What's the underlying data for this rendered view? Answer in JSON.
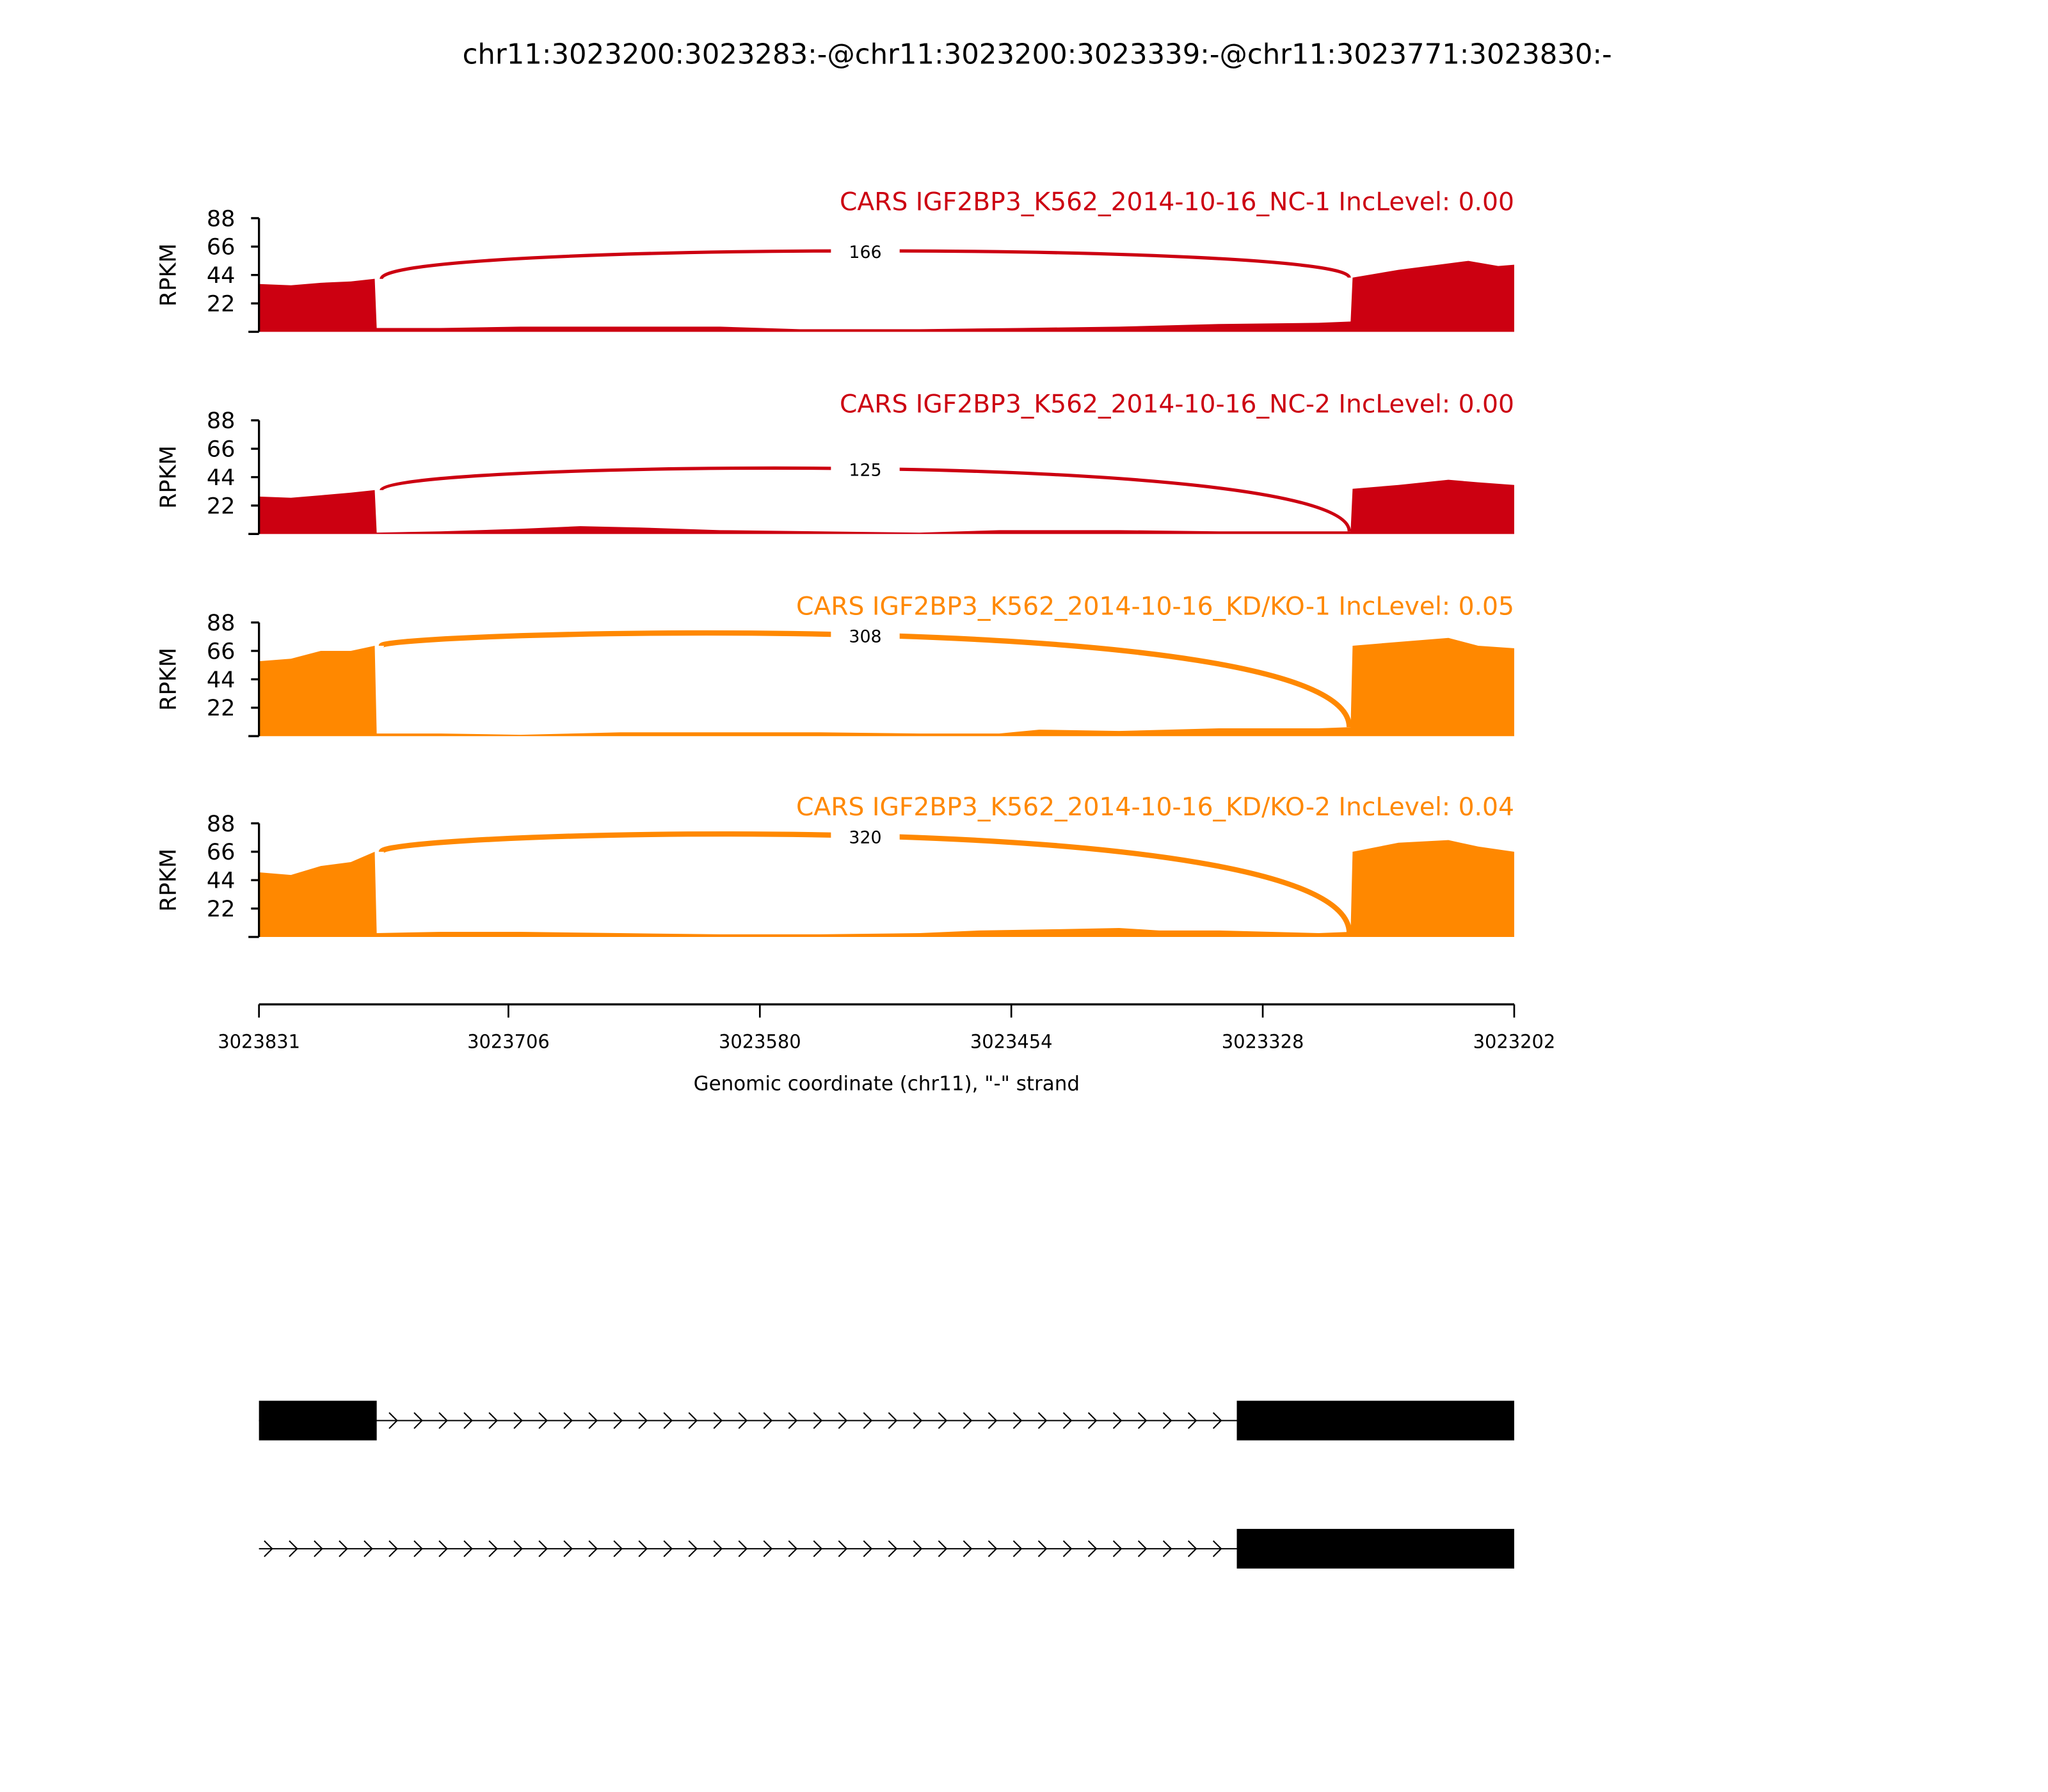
{
  "chart_data": {
    "type": "area",
    "title": "chr11:3023200:3023283:-@chr11:3023200:3023339:-@chr11:3023771:3023830:-",
    "xlabel": "Genomic coordinate (chr11), \"-\" strand",
    "ylabel": "RPKM",
    "xlim": [
      3023831,
      3023202
    ],
    "x_ticks": [
      "3023831",
      "3023706",
      "3023580",
      "3023454",
      "3023328",
      "3023202"
    ],
    "ylim": [
      0,
      88
    ],
    "y_ticks": [
      "88",
      "66",
      "44",
      "22"
    ],
    "junction": {
      "start": 3023771,
      "end": 3023284
    },
    "samples": [
      {
        "label": "CARS IGF2BP3_K562_2014-10-16_NC-1 IncLevel: 0.00",
        "color": "#CC0011",
        "junction_count": "166",
        "coverage": [
          [
            3023831,
            37
          ],
          [
            3023815,
            36
          ],
          [
            3023800,
            38
          ],
          [
            3023785,
            39
          ],
          [
            3023773,
            41
          ],
          [
            3023772,
            3
          ],
          [
            3023740,
            3
          ],
          [
            3023700,
            4
          ],
          [
            3023650,
            4
          ],
          [
            3023600,
            4
          ],
          [
            3023560,
            2
          ],
          [
            3023500,
            2
          ],
          [
            3023450,
            3
          ],
          [
            3023400,
            4
          ],
          [
            3023350,
            6
          ],
          [
            3023300,
            7
          ],
          [
            3023284,
            8
          ],
          [
            3023283,
            42
          ],
          [
            3023260,
            48
          ],
          [
            3023240,
            52
          ],
          [
            3023225,
            55
          ],
          [
            3023210,
            51
          ],
          [
            3023202,
            52
          ]
        ]
      },
      {
        "label": "CARS IGF2BP3_K562_2014-10-16_NC-2 IncLevel: 0.00",
        "color": "#CC0011",
        "junction_count": "125",
        "coverage": [
          [
            3023831,
            29
          ],
          [
            3023815,
            28
          ],
          [
            3023800,
            30
          ],
          [
            3023785,
            32
          ],
          [
            3023773,
            34
          ],
          [
            3023772,
            1
          ],
          [
            3023740,
            2
          ],
          [
            3023700,
            4
          ],
          [
            3023670,
            6
          ],
          [
            3023640,
            5
          ],
          [
            3023600,
            3
          ],
          [
            3023550,
            2
          ],
          [
            3023500,
            1
          ],
          [
            3023460,
            3
          ],
          [
            3023400,
            3
          ],
          [
            3023350,
            2
          ],
          [
            3023300,
            2
          ],
          [
            3023284,
            2
          ],
          [
            3023283,
            35
          ],
          [
            3023260,
            38
          ],
          [
            3023235,
            42
          ],
          [
            3023220,
            40
          ],
          [
            3023202,
            38
          ]
        ]
      },
      {
        "label": "CARS IGF2BP3_K562_2014-10-16_KD/KO-1 IncLevel: 0.05",
        "color": "#FF8800",
        "junction_count": "308",
        "coverage": [
          [
            3023831,
            58
          ],
          [
            3023815,
            60
          ],
          [
            3023800,
            66
          ],
          [
            3023785,
            66
          ],
          [
            3023773,
            70
          ],
          [
            3023772,
            2
          ],
          [
            3023740,
            2
          ],
          [
            3023700,
            1
          ],
          [
            3023650,
            3
          ],
          [
            3023600,
            3
          ],
          [
            3023550,
            3
          ],
          [
            3023500,
            2
          ],
          [
            3023460,
            2
          ],
          [
            3023440,
            5
          ],
          [
            3023400,
            4
          ],
          [
            3023350,
            6
          ],
          [
            3023300,
            6
          ],
          [
            3023284,
            7
          ],
          [
            3023283,
            70
          ],
          [
            3023260,
            73
          ],
          [
            3023235,
            76
          ],
          [
            3023220,
            70
          ],
          [
            3023202,
            68
          ]
        ]
      },
      {
        "label": "CARS IGF2BP3_K562_2014-10-16_KD/KO-2 IncLevel: 0.04",
        "color": "#FF8800",
        "junction_count": "320",
        "coverage": [
          [
            3023831,
            50
          ],
          [
            3023815,
            48
          ],
          [
            3023800,
            55
          ],
          [
            3023785,
            58
          ],
          [
            3023773,
            66
          ],
          [
            3023772,
            3
          ],
          [
            3023740,
            4
          ],
          [
            3023700,
            4
          ],
          [
            3023650,
            3
          ],
          [
            3023600,
            2
          ],
          [
            3023550,
            2
          ],
          [
            3023500,
            3
          ],
          [
            3023470,
            5
          ],
          [
            3023430,
            6
          ],
          [
            3023400,
            7
          ],
          [
            3023380,
            5
          ],
          [
            3023350,
            5
          ],
          [
            3023300,
            3
          ],
          [
            3023284,
            4
          ],
          [
            3023283,
            66
          ],
          [
            3023260,
            73
          ],
          [
            3023235,
            75
          ],
          [
            3023220,
            70
          ],
          [
            3023202,
            66
          ]
        ]
      }
    ],
    "gene_models": [
      {
        "exons": [
          [
            3023831,
            3023772
          ],
          [
            3023341,
            3023202
          ]
        ],
        "intron_strand": "-"
      },
      {
        "exons": [
          [
            3023341,
            3023202
          ]
        ],
        "line_from": 3023831,
        "intron_strand": "-"
      }
    ]
  }
}
